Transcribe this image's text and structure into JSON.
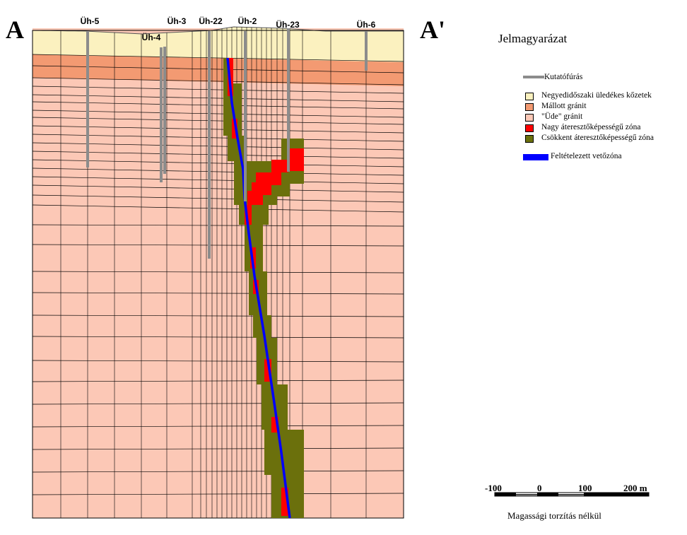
{
  "section": {
    "start_label": "A",
    "end_label": "A'",
    "boreholes": [
      "Üh-5",
      "Üh-4",
      "Üh-3",
      "Üh-22",
      "Üh-2",
      "Üh-23",
      "Üh-6"
    ]
  },
  "legend": {
    "title": "Jelmagyarázat",
    "borehole_label": "Kutatófúrás",
    "items": [
      {
        "label": "Negyedidőszaki üledékes kőzetek",
        "color": "#fbf1bf"
      },
      {
        "label": "Mállott gránit",
        "color": "#f39a72"
      },
      {
        "label": "\"Üde\" gránit",
        "color": "#fcc8b6"
      },
      {
        "label": "Nagy áteresztőképességű zóna",
        "color": "#ff0000"
      },
      {
        "label": "Csökkent áteresztőképességű zóna",
        "color": "#6b700c"
      }
    ],
    "fault_label": "Feltételezett vetőzóna",
    "fault_color": "#0000ff",
    "borehole_color": "#8c8c8c"
  },
  "scale": {
    "ticks": [
      "-100",
      "0",
      "100",
      "200 m"
    ],
    "note": "Magassági torzítás nélkül"
  }
}
